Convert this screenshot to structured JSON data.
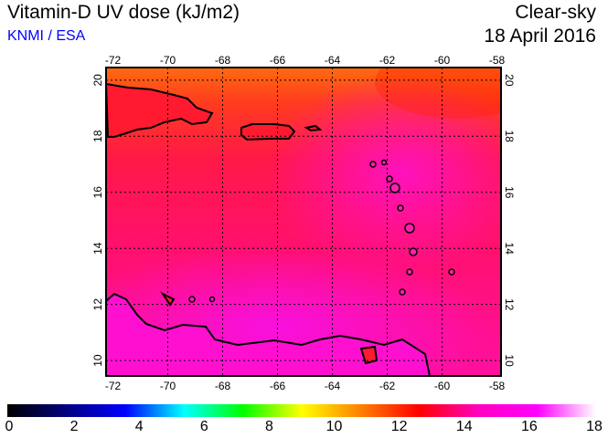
{
  "header": {
    "title": "Vitamin-D UV dose (kJ/m2)",
    "source": "KNMI / ESA",
    "mode": "Clear-sky",
    "date": "18 April 2016"
  },
  "map": {
    "lon_labels": [
      "-72",
      "-70",
      "-68",
      "-66",
      "-64",
      "-62",
      "-60",
      "-58"
    ],
    "lat_labels": [
      "20",
      "18",
      "16",
      "14",
      "12",
      "10"
    ],
    "lon_range": [
      -72.25,
      -57.85
    ],
    "lat_range": [
      9.45,
      20.45
    ]
  },
  "colorbar": {
    "labels": [
      "0",
      "2",
      "4",
      "6",
      "8",
      "10",
      "12",
      "14",
      "16",
      "18"
    ],
    "range": [
      0,
      18
    ],
    "colors": [
      "#000000",
      "#000080",
      "#0000ff",
      "#00ffff",
      "#00ff00",
      "#ffff00",
      "#ff8000",
      "#ff0000",
      "#ff00c0",
      "#ff00ff",
      "#ffffff"
    ]
  }
}
